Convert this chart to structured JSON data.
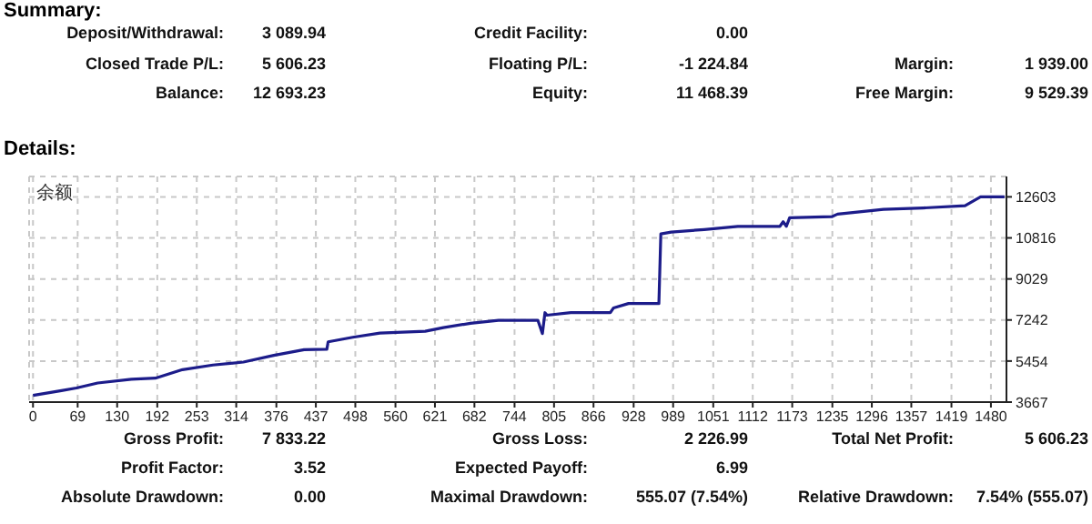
{
  "chart_data": {
    "type": "line",
    "xlim": [
      -6,
      1504
    ],
    "ylim": [
      3667,
      13490
    ],
    "xticks": [
      0,
      69,
      130,
      192,
      253,
      314,
      376,
      437,
      498,
      560,
      621,
      682,
      744,
      805,
      866,
      928,
      989,
      1051,
      1112,
      1173,
      1235,
      1296,
      1357,
      1419,
      1480
    ],
    "yticks": [
      3667,
      5454,
      7242,
      9029,
      10816,
      12603
    ],
    "grid": true,
    "marker": "none",
    "line_style": "solid",
    "series": [
      {
        "name": "余额",
        "color": "#1c1c8a",
        "x": [
          0,
          44,
          67,
          100,
          152,
          189,
          231,
          278,
          325,
          372,
          419,
          454,
          456,
          494,
          536,
          606,
          634,
          676,
          719,
          780,
          787,
          791,
          794,
          831,
          892,
          897,
          920,
          967,
          970,
          986,
          1037,
          1089,
          1154,
          1159,
          1164,
          1169,
          1234,
          1243,
          1314,
          1375,
          1440,
          1464,
          1501
        ],
        "values": [
          3960,
          4170,
          4280,
          4500,
          4660,
          4710,
          5080,
          5280,
          5410,
          5700,
          5950,
          5970,
          6290,
          6490,
          6670,
          6750,
          6910,
          7100,
          7230,
          7230,
          6650,
          7560,
          7450,
          7560,
          7560,
          7770,
          7960,
          7960,
          10990,
          11070,
          11180,
          11320,
          11320,
          11520,
          11320,
          11690,
          11740,
          11850,
          12060,
          12120,
          12220,
          12600,
          12600
        ]
      }
    ],
    "annotations": [
      "Summary:",
      "Deposit/Withdrawal:",
      "3 089.94",
      "Credit Facility:",
      "0.00",
      "Closed Trade P/L:",
      "5 606.23",
      "Floating P/L:",
      "-1 224.84",
      "Margin:",
      "1 939.00",
      "Balance:",
      "12 693.23",
      "Equity:",
      "11 468.39",
      "Free Margin:",
      "9 529.39",
      "Details:",
      "Gross Profit:",
      "7 833.22",
      "Gross Loss:",
      "2 226.99",
      "Total Net Profit:",
      "5 606.23",
      "Profit Factor:",
      "3.52",
      "Expected Payoff:",
      "6.99",
      "Absolute Drawdown:",
      "0.00",
      "Maximal Drawdown:",
      "555.07 (7.54%)",
      "Relative Drawdown:",
      "7.54% (555.07)"
    ]
  }
}
